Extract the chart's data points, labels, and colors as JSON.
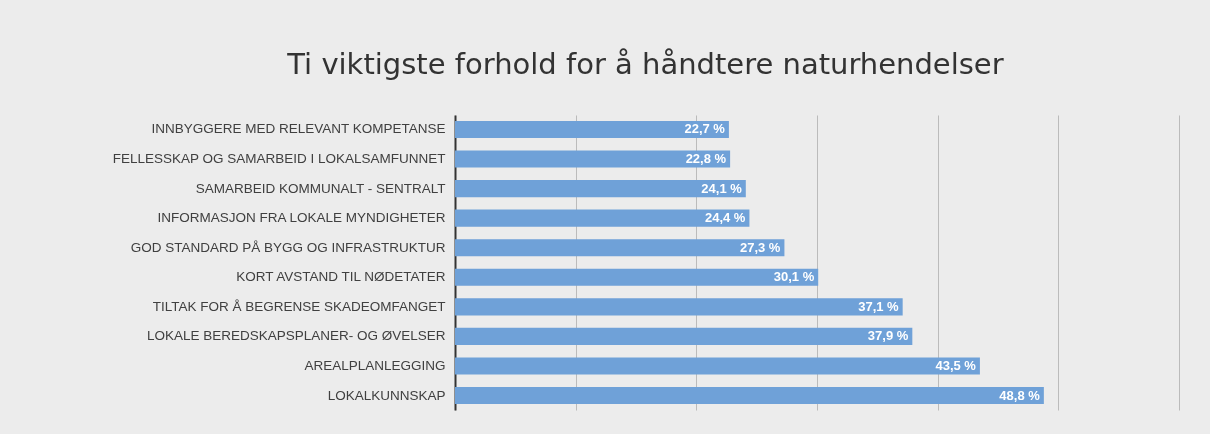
{
  "chart_data": {
    "type": "bar",
    "orientation": "horizontal",
    "title": "Ti viktigste forhold for å håndtere naturhendelser",
    "categories": [
      "INNBYGGERE MED RELEVANT KOMPETANSE",
      "FELLESSKAP OG SAMARBEID I LOKALSAMFUNNET",
      "SAMARBEID KOMMUNALT - SENTRALT",
      "INFORMASJON FRA LOKALE MYNDIGHETER",
      "GOD STANDARD PÅ BYGG OG INFRASTRUKTUR",
      "KORT AVSTAND TIL NØDETATER",
      "TILTAK FOR Å BEGRENSE SKADEOMFANGET",
      "LOKALE BEREDSKAPSPLANER- OG ØVELSER",
      "AREALPLANLEGGING",
      "LOKALKUNNSKAP"
    ],
    "values": [
      22.7,
      22.8,
      24.1,
      24.4,
      27.3,
      30.1,
      37.1,
      37.9,
      43.5,
      48.8
    ],
    "value_labels": [
      "22,7 %",
      "22,8 %",
      "24,1 %",
      "24,4 %",
      "27,3 %",
      "30,1 %",
      "37,1 %",
      "37,9 %",
      "43,5 %",
      "48,8 %"
    ],
    "color": "#6fa1d8",
    "xlim": [
      0,
      60
    ],
    "xticks": [
      {
        "value": 0,
        "label": null
      },
      {
        "value": 10,
        "label": null
      },
      {
        "value": 20,
        "label": null
      },
      {
        "value": 30,
        "label": null
      },
      {
        "value": 40,
        "label": null
      },
      {
        "value": 50,
        "label": null
      },
      {
        "value": 60,
        "label": null
      }
    ],
    "grid": "x",
    "tick_labels": "y"
  }
}
